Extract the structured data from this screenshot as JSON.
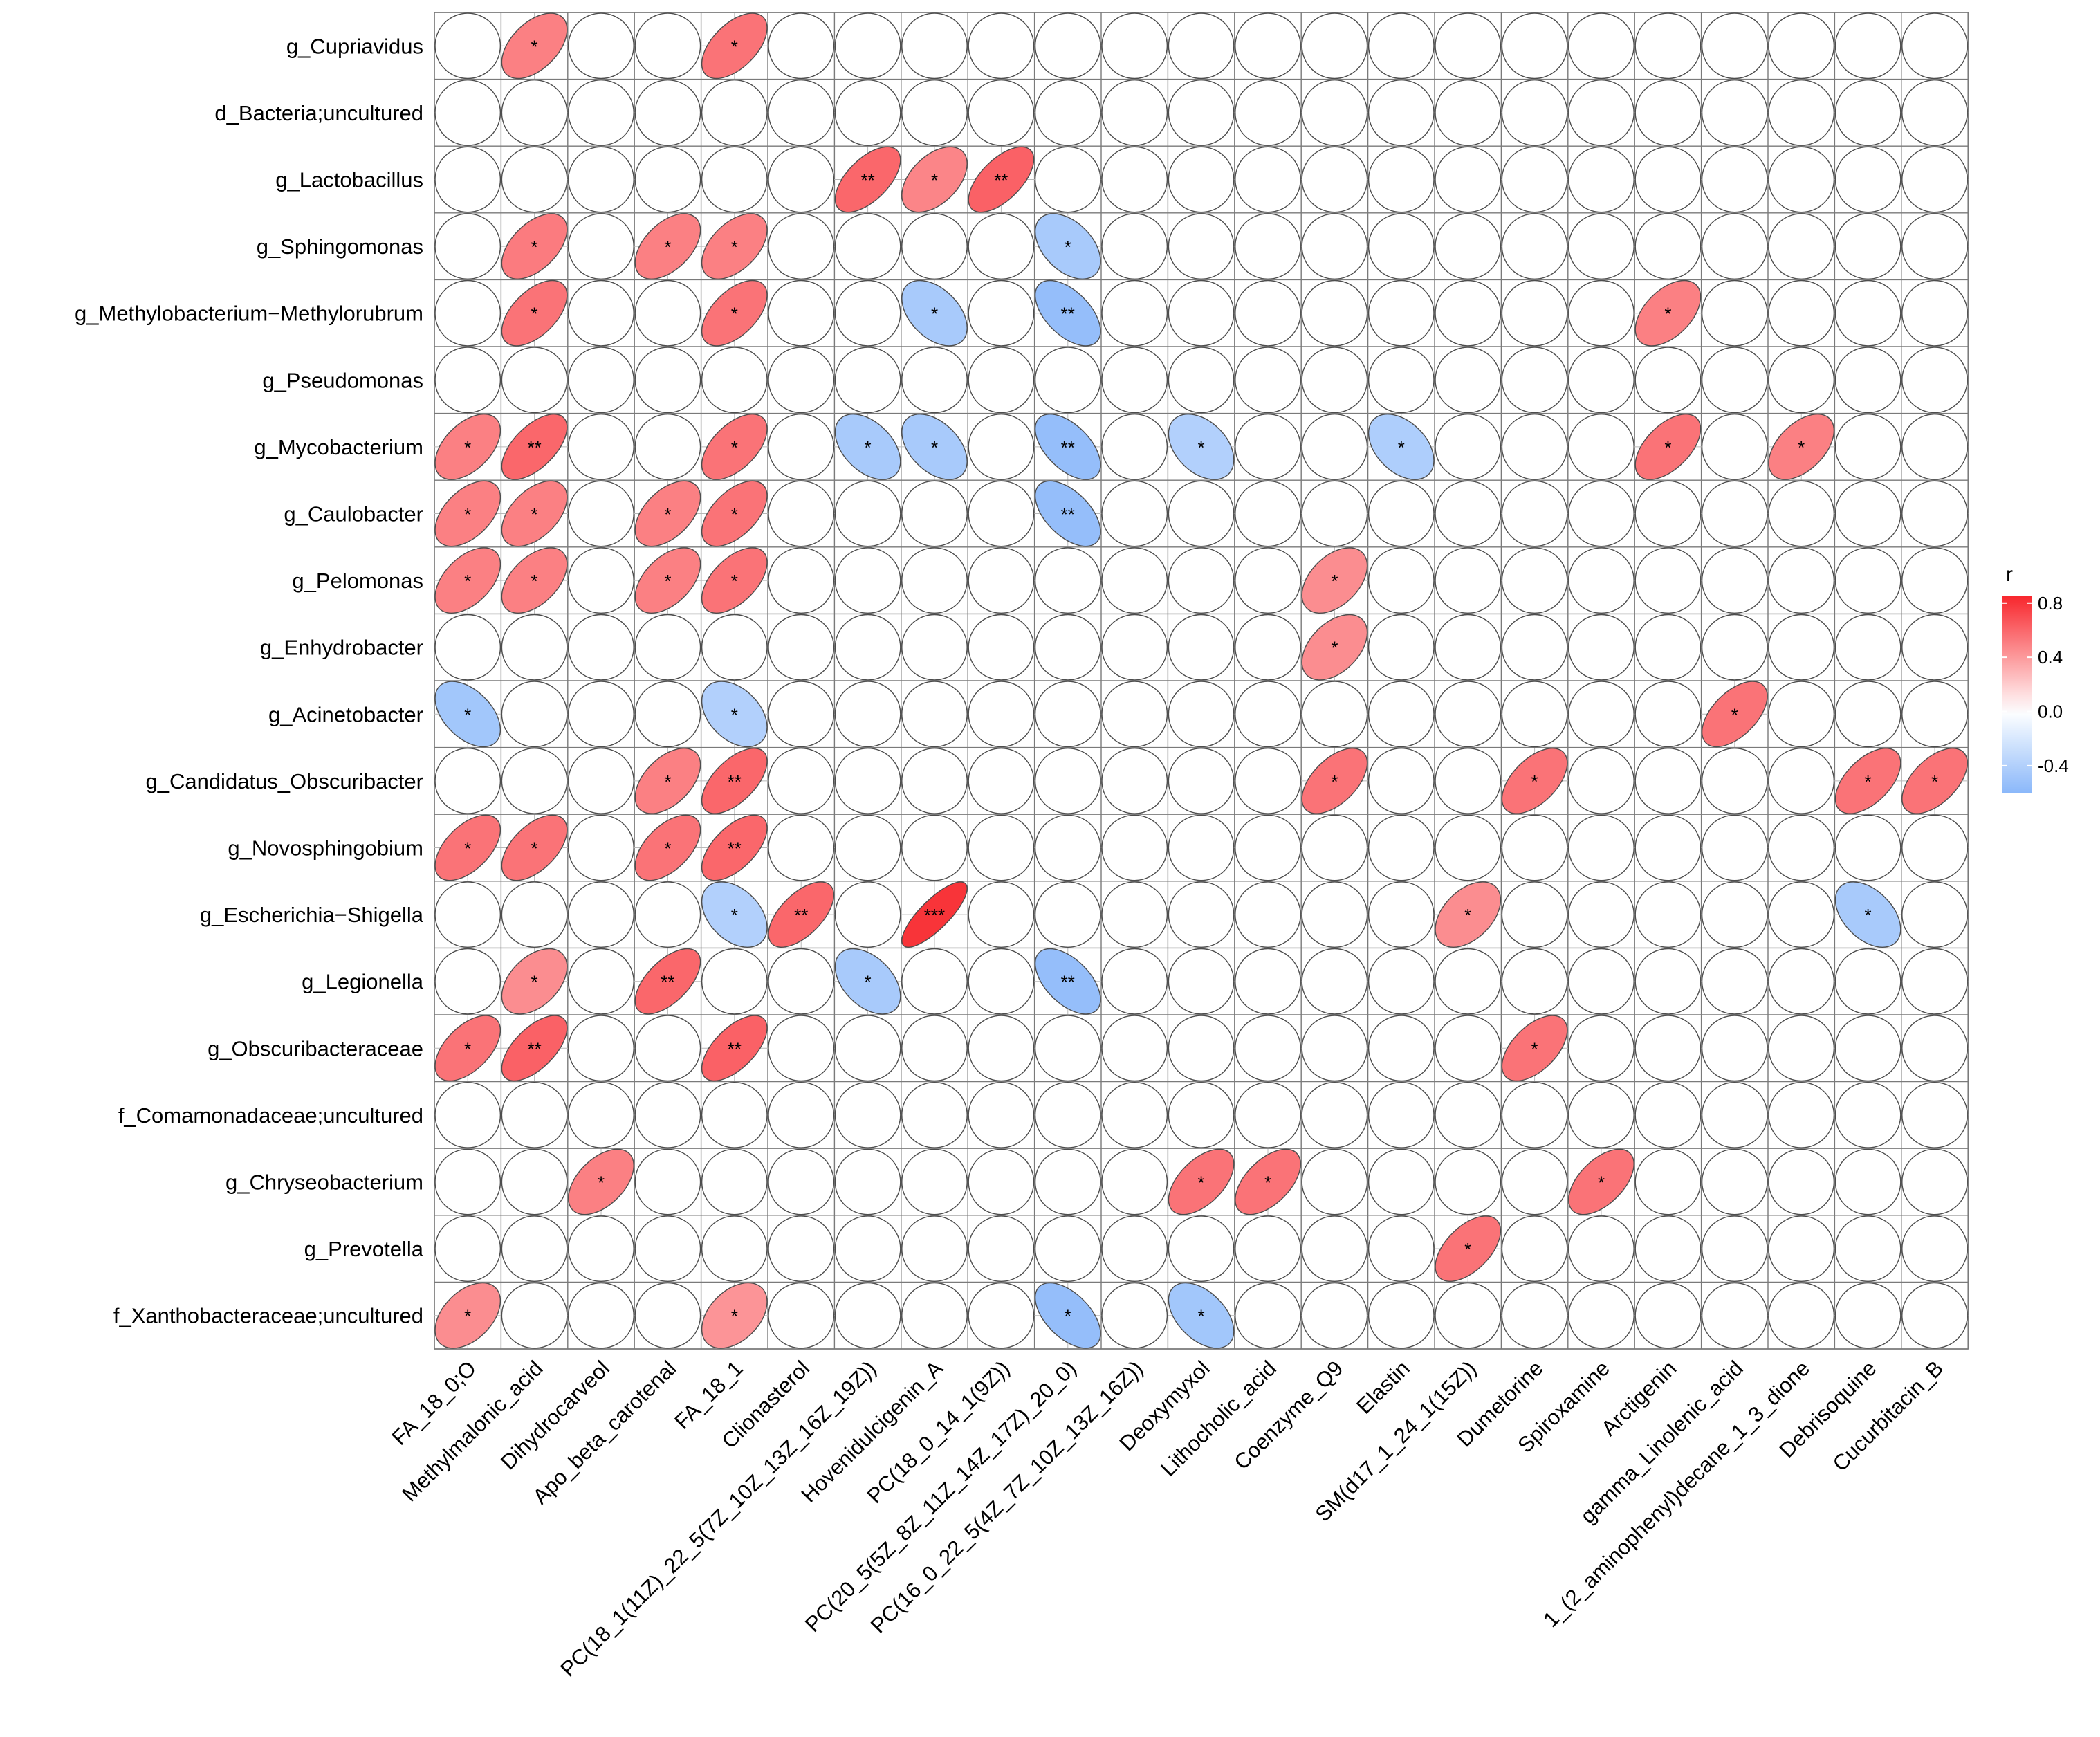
{
  "chart_data": {
    "type": "heatmap",
    "title": "",
    "xlabel": "",
    "ylabel": "",
    "rows": [
      "g_Cupriavidus",
      "d_Bacteria;uncultured",
      "g_Lactobacillus",
      "g_Sphingomonas",
      "g_Methylobacterium−Methylorubrum",
      "g_Pseudomonas",
      "g_Mycobacterium",
      "g_Caulobacter",
      "g_Pelomonas",
      "g_Enhydrobacter",
      "g_Acinetobacter",
      "g_Candidatus_Obscuribacter",
      "g_Novosphingobium",
      "g_Escherichia−Shigella",
      "g_Legionella",
      "g_Obscuribacteraceae",
      "f_Comamonadaceae;uncultured",
      "g_Chryseobacterium",
      "g_Prevotella",
      "f_Xanthobacteraceae;uncultured"
    ],
    "columns": [
      "FA_18_0;O",
      "Methylmalonic_acid",
      "Dihydrocarveol",
      "Apo_beta_carotenal",
      "FA_18_1",
      "Clionasterol",
      "PC(18_1(11Z)_22_5(7Z_10Z_13Z_16Z_19Z))",
      "Hovenidulcigenin_A",
      "PC(18_0_14_1(9Z))",
      "PC(20_5(5Z_8Z_11Z_14Z_17Z)_20_0)",
      "PC(16_0_22_5(4Z_7Z_10Z_13Z_16Z))",
      "Deoxymyxol",
      "Lithocholic_acid",
      "Coenzyme_Q9",
      "Elastin",
      "SM(d17_1_24_1(15Z))",
      "Dumetorine",
      "Spiroxamine",
      "Arctigenin",
      "gamma_Linolenic_acid",
      "1_(2_aminophenyl)decane_1_3_dione",
      "Debrisoquine",
      "Cucurbitacin_B"
    ],
    "cells": [
      {
        "row": 0,
        "col": 1,
        "r": 0.5,
        "label": "*"
      },
      {
        "row": 0,
        "col": 4,
        "r": 0.55,
        "label": "*"
      },
      {
        "row": 2,
        "col": 6,
        "r": 0.6,
        "label": "**"
      },
      {
        "row": 2,
        "col": 7,
        "r": 0.48,
        "label": "*"
      },
      {
        "row": 2,
        "col": 8,
        "r": 0.62,
        "label": "**"
      },
      {
        "row": 3,
        "col": 1,
        "r": 0.52,
        "label": "*"
      },
      {
        "row": 3,
        "col": 3,
        "r": 0.5,
        "label": "*"
      },
      {
        "row": 3,
        "col": 4,
        "r": 0.5,
        "label": "*"
      },
      {
        "row": 3,
        "col": 9,
        "r": -0.45,
        "label": "*"
      },
      {
        "row": 4,
        "col": 1,
        "r": 0.55,
        "label": "*"
      },
      {
        "row": 4,
        "col": 4,
        "r": 0.55,
        "label": "*"
      },
      {
        "row": 4,
        "col": 7,
        "r": -0.45,
        "label": "*"
      },
      {
        "row": 4,
        "col": 9,
        "r": -0.55,
        "label": "**"
      },
      {
        "row": 4,
        "col": 18,
        "r": 0.5,
        "label": "*"
      },
      {
        "row": 6,
        "col": 0,
        "r": 0.5,
        "label": "*"
      },
      {
        "row": 6,
        "col": 1,
        "r": 0.6,
        "label": "**"
      },
      {
        "row": 6,
        "col": 4,
        "r": 0.55,
        "label": "*"
      },
      {
        "row": 6,
        "col": 6,
        "r": -0.45,
        "label": "*"
      },
      {
        "row": 6,
        "col": 7,
        "r": -0.45,
        "label": "*"
      },
      {
        "row": 6,
        "col": 9,
        "r": -0.55,
        "label": "**"
      },
      {
        "row": 6,
        "col": 11,
        "r": -0.4,
        "label": "*"
      },
      {
        "row": 6,
        "col": 14,
        "r": -0.42,
        "label": "*"
      },
      {
        "row": 6,
        "col": 18,
        "r": 0.55,
        "label": "*"
      },
      {
        "row": 6,
        "col": 20,
        "r": 0.5,
        "label": "*"
      },
      {
        "row": 7,
        "col": 0,
        "r": 0.5,
        "label": "*"
      },
      {
        "row": 7,
        "col": 1,
        "r": 0.5,
        "label": "*"
      },
      {
        "row": 7,
        "col": 3,
        "r": 0.5,
        "label": "*"
      },
      {
        "row": 7,
        "col": 4,
        "r": 0.55,
        "label": "*"
      },
      {
        "row": 7,
        "col": 9,
        "r": -0.55,
        "label": "**"
      },
      {
        "row": 8,
        "col": 0,
        "r": 0.5,
        "label": "*"
      },
      {
        "row": 8,
        "col": 1,
        "r": 0.5,
        "label": "*"
      },
      {
        "row": 8,
        "col": 3,
        "r": 0.5,
        "label": "*"
      },
      {
        "row": 8,
        "col": 4,
        "r": 0.55,
        "label": "*"
      },
      {
        "row": 8,
        "col": 13,
        "r": 0.45,
        "label": "*"
      },
      {
        "row": 9,
        "col": 13,
        "r": 0.45,
        "label": "*"
      },
      {
        "row": 10,
        "col": 0,
        "r": -0.48,
        "label": "*"
      },
      {
        "row": 10,
        "col": 4,
        "r": -0.4,
        "label": "*"
      },
      {
        "row": 10,
        "col": 19,
        "r": 0.55,
        "label": "*"
      },
      {
        "row": 11,
        "col": 3,
        "r": 0.5,
        "label": "*"
      },
      {
        "row": 11,
        "col": 4,
        "r": 0.6,
        "label": "**"
      },
      {
        "row": 11,
        "col": 13,
        "r": 0.55,
        "label": "*"
      },
      {
        "row": 11,
        "col": 16,
        "r": 0.55,
        "label": "*"
      },
      {
        "row": 11,
        "col": 21,
        "r": 0.55,
        "label": "*"
      },
      {
        "row": 11,
        "col": 22,
        "r": 0.55,
        "label": "*"
      },
      {
        "row": 12,
        "col": 0,
        "r": 0.55,
        "label": "*"
      },
      {
        "row": 12,
        "col": 1,
        "r": 0.55,
        "label": "*"
      },
      {
        "row": 12,
        "col": 3,
        "r": 0.55,
        "label": "*"
      },
      {
        "row": 12,
        "col": 4,
        "r": 0.6,
        "label": "**"
      },
      {
        "row": 13,
        "col": 4,
        "r": -0.4,
        "label": "*"
      },
      {
        "row": 13,
        "col": 5,
        "r": 0.6,
        "label": "**"
      },
      {
        "row": 13,
        "col": 7,
        "r": 0.8,
        "label": "***"
      },
      {
        "row": 13,
        "col": 15,
        "r": 0.45,
        "label": "*"
      },
      {
        "row": 13,
        "col": 21,
        "r": -0.45,
        "label": "*"
      },
      {
        "row": 14,
        "col": 1,
        "r": 0.45,
        "label": "*"
      },
      {
        "row": 14,
        "col": 3,
        "r": 0.6,
        "label": "**"
      },
      {
        "row": 14,
        "col": 6,
        "r": -0.45,
        "label": "*"
      },
      {
        "row": 14,
        "col": 9,
        "r": -0.55,
        "label": "**"
      },
      {
        "row": 15,
        "col": 0,
        "r": 0.55,
        "label": "*"
      },
      {
        "row": 15,
        "col": 1,
        "r": 0.62,
        "label": "**"
      },
      {
        "row": 15,
        "col": 4,
        "r": 0.62,
        "label": "**"
      },
      {
        "row": 15,
        "col": 16,
        "r": 0.55,
        "label": "*"
      },
      {
        "row": 17,
        "col": 2,
        "r": 0.5,
        "label": "*"
      },
      {
        "row": 17,
        "col": 11,
        "r": 0.55,
        "label": "*"
      },
      {
        "row": 17,
        "col": 12,
        "r": 0.55,
        "label": "*"
      },
      {
        "row": 17,
        "col": 17,
        "r": 0.55,
        "label": "*"
      },
      {
        "row": 18,
        "col": 15,
        "r": 0.55,
        "label": "*"
      },
      {
        "row": 19,
        "col": 0,
        "r": 0.45,
        "label": "*"
      },
      {
        "row": 19,
        "col": 4,
        "r": 0.42,
        "label": "*"
      },
      {
        "row": 19,
        "col": 9,
        "r": -0.55,
        "label": "*"
      },
      {
        "row": 19,
        "col": 11,
        "r": -0.48,
        "label": "*"
      }
    ],
    "legend": {
      "title": "r",
      "ticks": [
        "0.8",
        "0.4",
        "0.0",
        "-0.4"
      ],
      "tick_values": [
        0.8,
        0.4,
        0.0,
        -0.4
      ],
      "range": [
        -0.6,
        0.85
      ],
      "placement": "right"
    },
    "colors": {
      "positive": "#f8272d",
      "neutral": "#ffffff",
      "negative": "#5b9bf8",
      "grid": "#7a7a7a",
      "outline": "#4d4d4d"
    }
  }
}
